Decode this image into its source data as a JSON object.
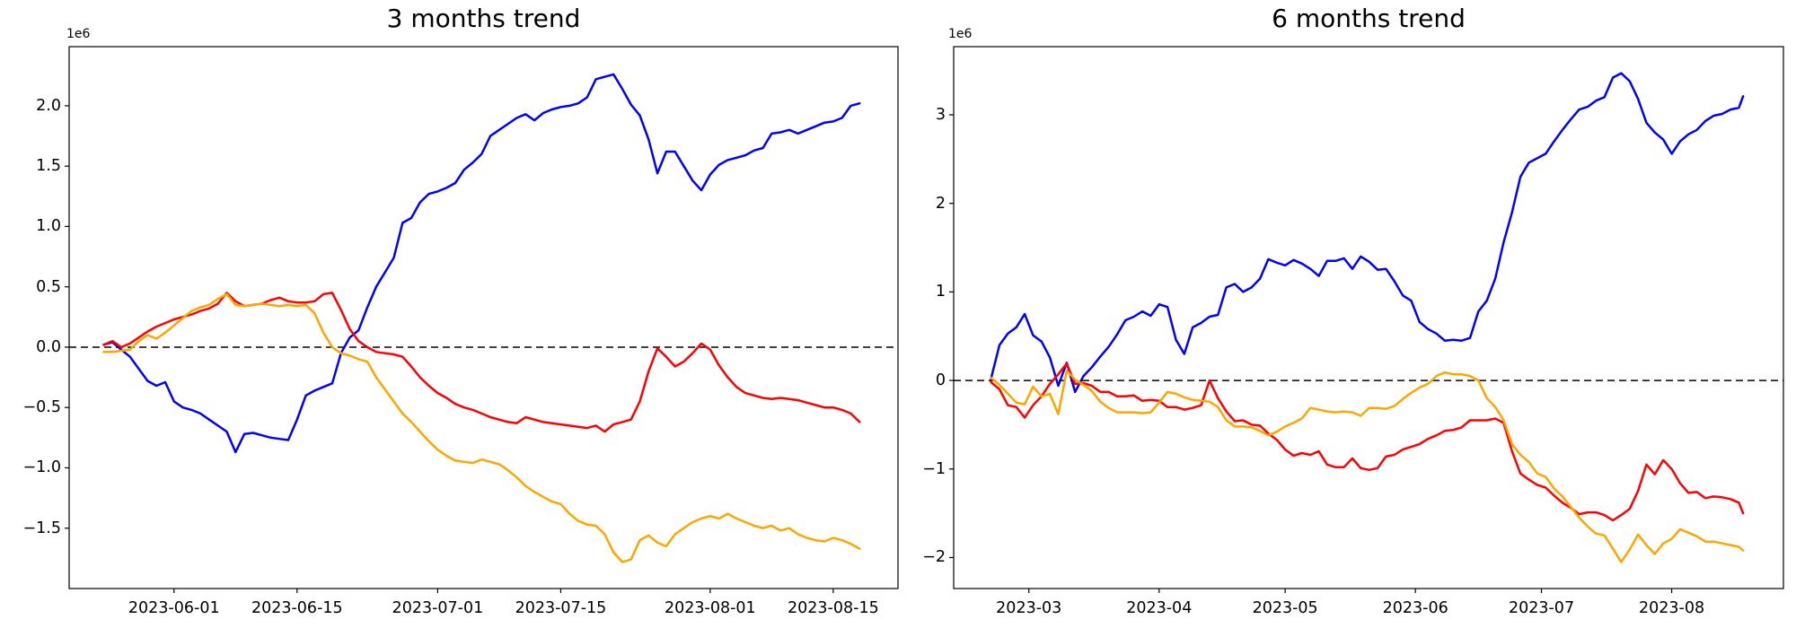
{
  "figure": {
    "background": "#ffffff",
    "axes_color": "#000000",
    "zero_line_color": "#000000"
  },
  "chart_data": [
    {
      "type": "line",
      "title": "3 months trend",
      "offset_label": "1e6",
      "x_unit": "days relative to 2023-06-01, daily points from 2023-05-24 to 2023-08-18",
      "xlim_days": [
        -11.93,
        82.37
      ],
      "ylim": [
        -2.0,
        2.49
      ],
      "zero_line": true,
      "grid": false,
      "legend": null,
      "xticks": {
        "offsets": [
          0,
          14,
          30,
          44,
          61,
          75
        ],
        "labels": [
          "2023-06-01",
          "2023-06-15",
          "2023-07-01",
          "2023-07-15",
          "2023-08-01",
          "2023-08-15"
        ]
      },
      "yticks": {
        "values": [
          2.0,
          1.5,
          1.0,
          0.5,
          0.0,
          -0.5,
          -1.0,
          -1.5
        ],
        "labels": [
          "2.0",
          "1.5",
          "1.0",
          "0.5",
          "0.0",
          "−0.5",
          "−1.0",
          "−1.5"
        ]
      },
      "x_offsets": [
        -8,
        -7,
        -6,
        -5,
        -4,
        -3,
        -2,
        -1,
        0,
        1,
        2,
        3,
        4,
        5,
        6,
        7,
        8,
        9,
        10,
        11,
        12,
        13,
        14,
        15,
        16,
        17,
        18,
        19,
        20,
        21,
        22,
        23,
        24,
        25,
        26,
        27,
        28,
        29,
        30,
        31,
        32,
        33,
        34,
        35,
        36,
        37,
        38,
        39,
        40,
        41,
        42,
        43,
        44,
        45,
        46,
        47,
        48,
        49,
        50,
        51,
        52,
        53,
        54,
        55,
        56,
        57,
        58,
        59,
        60,
        61,
        62,
        63,
        64,
        65,
        66,
        67,
        68,
        69,
        70,
        71,
        72,
        73,
        74,
        75,
        76,
        77,
        78
      ],
      "series": [
        {
          "name": "blue",
          "color": "#0000ff",
          "values": [
            0.02,
            0.04,
            -0.02,
            -0.08,
            -0.18,
            -0.28,
            -0.32,
            -0.29,
            -0.45,
            -0.5,
            -0.52,
            -0.55,
            -0.6,
            -0.65,
            -0.7,
            -0.87,
            -0.72,
            -0.71,
            -0.73,
            -0.75,
            -0.76,
            -0.77,
            -0.6,
            -0.4,
            -0.36,
            -0.33,
            -0.3,
            -0.05,
            0.08,
            0.14,
            0.33,
            0.5,
            0.62,
            0.74,
            1.03,
            1.07,
            1.2,
            1.27,
            1.29,
            1.32,
            1.36,
            1.47,
            1.53,
            1.6,
            1.75,
            1.8,
            1.85,
            1.9,
            1.93,
            1.88,
            1.94,
            1.97,
            1.99,
            2.0,
            2.02,
            2.07,
            2.22,
            2.24,
            2.26,
            2.14,
            2.01,
            1.92,
            1.72,
            1.44,
            1.62,
            1.62,
            1.5,
            1.38,
            1.3,
            1.43,
            1.51,
            1.55,
            1.57,
            1.59,
            1.63,
            1.65,
            1.77,
            1.78,
            1.8,
            1.77,
            1.8,
            1.83,
            1.86,
            1.87,
            1.9,
            2.0,
            2.02
          ]
        },
        {
          "name": "red",
          "color": "#ff0000",
          "values": [
            0.02,
            0.05,
            0.0,
            0.03,
            0.08,
            0.13,
            0.17,
            0.2,
            0.23,
            0.25,
            0.27,
            0.3,
            0.32,
            0.36,
            0.45,
            0.38,
            0.34,
            0.35,
            0.36,
            0.39,
            0.41,
            0.38,
            0.37,
            0.37,
            0.38,
            0.44,
            0.45,
            0.31,
            0.15,
            0.05,
            0.0,
            -0.04,
            -0.05,
            -0.06,
            -0.08,
            -0.16,
            -0.25,
            -0.32,
            -0.38,
            -0.42,
            -0.47,
            -0.5,
            -0.52,
            -0.55,
            -0.58,
            -0.6,
            -0.62,
            -0.63,
            -0.58,
            -0.6,
            -0.62,
            -0.63,
            -0.64,
            -0.65,
            -0.66,
            -0.67,
            -0.65,
            -0.7,
            -0.64,
            -0.62,
            -0.6,
            -0.45,
            -0.2,
            -0.01,
            -0.08,
            -0.16,
            -0.12,
            -0.05,
            0.03,
            -0.02,
            -0.15,
            -0.25,
            -0.33,
            -0.38,
            -0.4,
            -0.42,
            -0.43,
            -0.42,
            -0.43,
            -0.44,
            -0.46,
            -0.48,
            -0.5,
            -0.5,
            -0.52,
            -0.55,
            -0.62
          ]
        },
        {
          "name": "orange",
          "color": "#ffa500",
          "values": [
            -0.04,
            -0.04,
            -0.03,
            -0.02,
            0.05,
            0.1,
            0.07,
            0.12,
            0.18,
            0.24,
            0.3,
            0.33,
            0.35,
            0.4,
            0.44,
            0.35,
            0.34,
            0.35,
            0.36,
            0.35,
            0.34,
            0.35,
            0.34,
            0.35,
            0.28,
            0.12,
            0.0,
            -0.05,
            -0.07,
            -0.1,
            -0.12,
            -0.25,
            -0.35,
            -0.45,
            -0.55,
            -0.62,
            -0.7,
            -0.78,
            -0.85,
            -0.9,
            -0.94,
            -0.95,
            -0.96,
            -0.93,
            -0.95,
            -0.97,
            -1.02,
            -1.08,
            -1.15,
            -1.2,
            -1.24,
            -1.28,
            -1.3,
            -1.38,
            -1.44,
            -1.47,
            -1.48,
            -1.55,
            -1.7,
            -1.78,
            -1.76,
            -1.6,
            -1.56,
            -1.62,
            -1.65,
            -1.55,
            -1.5,
            -1.45,
            -1.42,
            -1.4,
            -1.42,
            -1.38,
            -1.42,
            -1.45,
            -1.48,
            -1.5,
            -1.48,
            -1.52,
            -1.5,
            -1.55,
            -1.58,
            -1.6,
            -1.61,
            -1.58,
            -1.6,
            -1.63,
            -1.67
          ]
        }
      ]
    },
    {
      "type": "line",
      "title": "6 months trend",
      "offset_label": "1e6",
      "x_unit": "days relative to 2023-03-01, points every 2 days from 2023-02-20 to 2023-08-18",
      "xlim_days": [
        -17.9,
        179.6
      ],
      "ylim": [
        -2.35,
        3.77
      ],
      "zero_line": true,
      "grid": false,
      "legend": null,
      "xticks": {
        "offsets": [
          0,
          31,
          61,
          92,
          122,
          153
        ],
        "labels": [
          "2023-03",
          "2023-04",
          "2023-05",
          "2023-06",
          "2023-07",
          "2023-08"
        ]
      },
      "yticks": {
        "values": [
          3,
          2,
          1,
          0,
          -1,
          -2
        ],
        "labels": [
          "3",
          "2",
          "1",
          "0",
          "−1",
          "−2"
        ]
      },
      "x_offsets": [
        -9,
        -7,
        -5,
        -3,
        -1,
        1,
        3,
        5,
        7,
        9,
        11,
        13,
        15,
        17,
        19,
        21,
        23,
        25,
        27,
        29,
        31,
        33,
        35,
        37,
        39,
        41,
        43,
        45,
        47,
        49,
        51,
        53,
        55,
        57,
        59,
        61,
        63,
        65,
        67,
        69,
        71,
        73,
        75,
        77,
        79,
        81,
        83,
        85,
        87,
        89,
        91,
        93,
        95,
        97,
        99,
        101,
        103,
        105,
        107,
        109,
        111,
        113,
        115,
        117,
        119,
        121,
        123,
        125,
        127,
        129,
        131,
        133,
        135,
        137,
        139,
        141,
        143,
        145,
        147,
        149,
        151,
        153,
        155,
        157,
        159,
        161,
        163,
        165,
        167,
        169,
        170
      ],
      "series": [
        {
          "name": "blue",
          "color": "#0000ff",
          "values": [
            0.02,
            0.4,
            0.53,
            0.6,
            0.75,
            0.51,
            0.44,
            0.26,
            -0.06,
            0.2,
            -0.13,
            0.05,
            0.15,
            0.27,
            0.38,
            0.52,
            0.68,
            0.72,
            0.78,
            0.73,
            0.86,
            0.83,
            0.46,
            0.3,
            0.6,
            0.65,
            0.72,
            0.74,
            1.05,
            1.09,
            1.0,
            1.05,
            1.15,
            1.37,
            1.33,
            1.3,
            1.36,
            1.32,
            1.26,
            1.18,
            1.35,
            1.35,
            1.38,
            1.26,
            1.4,
            1.34,
            1.25,
            1.26,
            1.12,
            0.96,
            0.9,
            0.66,
            0.58,
            0.53,
            0.45,
            0.46,
            0.45,
            0.48,
            0.78,
            0.9,
            1.15,
            1.56,
            1.9,
            2.3,
            2.46,
            2.51,
            2.56,
            2.7,
            2.83,
            2.95,
            3.06,
            3.09,
            3.16,
            3.2,
            3.42,
            3.47,
            3.38,
            3.18,
            2.91,
            2.8,
            2.72,
            2.56,
            2.7,
            2.78,
            2.83,
            2.93,
            2.99,
            3.01,
            3.06,
            3.08,
            3.21
          ]
        },
        {
          "name": "red",
          "color": "#ff0000",
          "values": [
            -0.02,
            -0.1,
            -0.28,
            -0.3,
            -0.42,
            -0.28,
            -0.18,
            -0.04,
            0.07,
            0.19,
            -0.04,
            -0.03,
            -0.06,
            -0.13,
            -0.13,
            -0.18,
            -0.18,
            -0.17,
            -0.23,
            -0.22,
            -0.23,
            -0.3,
            -0.3,
            -0.33,
            -0.31,
            -0.28,
            0.0,
            -0.2,
            -0.35,
            -0.46,
            -0.45,
            -0.5,
            -0.51,
            -0.6,
            -0.67,
            -0.78,
            -0.85,
            -0.82,
            -0.84,
            -0.8,
            -0.95,
            -0.98,
            -0.98,
            -0.88,
            -0.99,
            -1.01,
            -0.99,
            -0.86,
            -0.84,
            -0.78,
            -0.75,
            -0.72,
            -0.66,
            -0.62,
            -0.57,
            -0.56,
            -0.53,
            -0.45,
            -0.45,
            -0.45,
            -0.43,
            -0.48,
            -0.8,
            -1.05,
            -1.12,
            -1.18,
            -1.21,
            -1.3,
            -1.38,
            -1.44,
            -1.51,
            -1.49,
            -1.49,
            -1.52,
            -1.58,
            -1.52,
            -1.45,
            -1.25,
            -0.95,
            -1.06,
            -0.9,
            -1.0,
            -1.16,
            -1.27,
            -1.26,
            -1.33,
            -1.31,
            -1.32,
            -1.34,
            -1.38,
            -1.5
          ]
        },
        {
          "name": "orange",
          "color": "#ffa500",
          "values": [
            0.03,
            -0.05,
            -0.15,
            -0.25,
            -0.27,
            -0.07,
            -0.18,
            -0.15,
            -0.38,
            0.11,
            0.01,
            -0.05,
            -0.12,
            -0.24,
            -0.31,
            -0.36,
            -0.36,
            -0.36,
            -0.37,
            -0.36,
            -0.25,
            -0.13,
            -0.15,
            -0.19,
            -0.22,
            -0.23,
            -0.24,
            -0.3,
            -0.45,
            -0.52,
            -0.52,
            -0.53,
            -0.57,
            -0.62,
            -0.58,
            -0.52,
            -0.48,
            -0.43,
            -0.31,
            -0.33,
            -0.35,
            -0.36,
            -0.35,
            -0.36,
            -0.4,
            -0.31,
            -0.31,
            -0.32,
            -0.29,
            -0.21,
            -0.14,
            -0.08,
            -0.04,
            0.05,
            0.09,
            0.07,
            0.07,
            0.05,
            0.0,
            -0.2,
            -0.3,
            -0.45,
            -0.72,
            -0.84,
            -0.92,
            -1.05,
            -1.09,
            -1.22,
            -1.31,
            -1.43,
            -1.55,
            -1.65,
            -1.73,
            -1.75,
            -1.9,
            -2.05,
            -1.91,
            -1.74,
            -1.86,
            -1.96,
            -1.84,
            -1.79,
            -1.68,
            -1.72,
            -1.76,
            -1.82,
            -1.82,
            -1.84,
            -1.86,
            -1.88,
            -1.92
          ]
        }
      ]
    }
  ]
}
